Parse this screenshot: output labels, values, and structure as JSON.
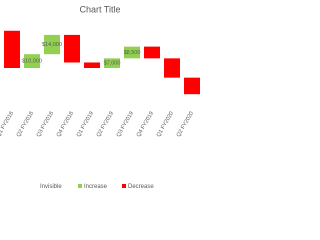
{
  "chart_data": {
    "type": "waterfall",
    "title": "Chart Title",
    "categories": [
      "Q1 FY2018",
      "Q2 FY2018",
      "Q3 FY2018",
      "Q4 FY2018",
      "Q1 FY2019",
      "Q2 FY2019",
      "Q3 FY2019",
      "Q4 FY2019",
      "Q1 FY2020",
      "Q2 FY2020"
    ],
    "series": [
      {
        "name": "Invisible",
        "color": "none",
        "values": [
          29000,
          29000,
          39000,
          33000,
          29000,
          29000,
          36000,
          36000,
          22000,
          10000
        ]
      },
      {
        "name": "Increase",
        "color": "#92d050",
        "values": [
          null,
          10000,
          14000,
          null,
          null,
          7000,
          8500,
          null,
          null,
          null
        ],
        "value_labels": [
          null,
          "$10,000",
          "$14,000",
          null,
          null,
          "$7,000",
          "$8,500",
          null,
          null,
          null
        ]
      },
      {
        "name": "Decrease",
        "color": "#ff0000",
        "values": [
          27000,
          null,
          null,
          20000,
          4000,
          null,
          null,
          8500,
          14000,
          12000
        ]
      }
    ],
    "ylim": [
      0,
      58000
    ],
    "legend": "bottom"
  }
}
